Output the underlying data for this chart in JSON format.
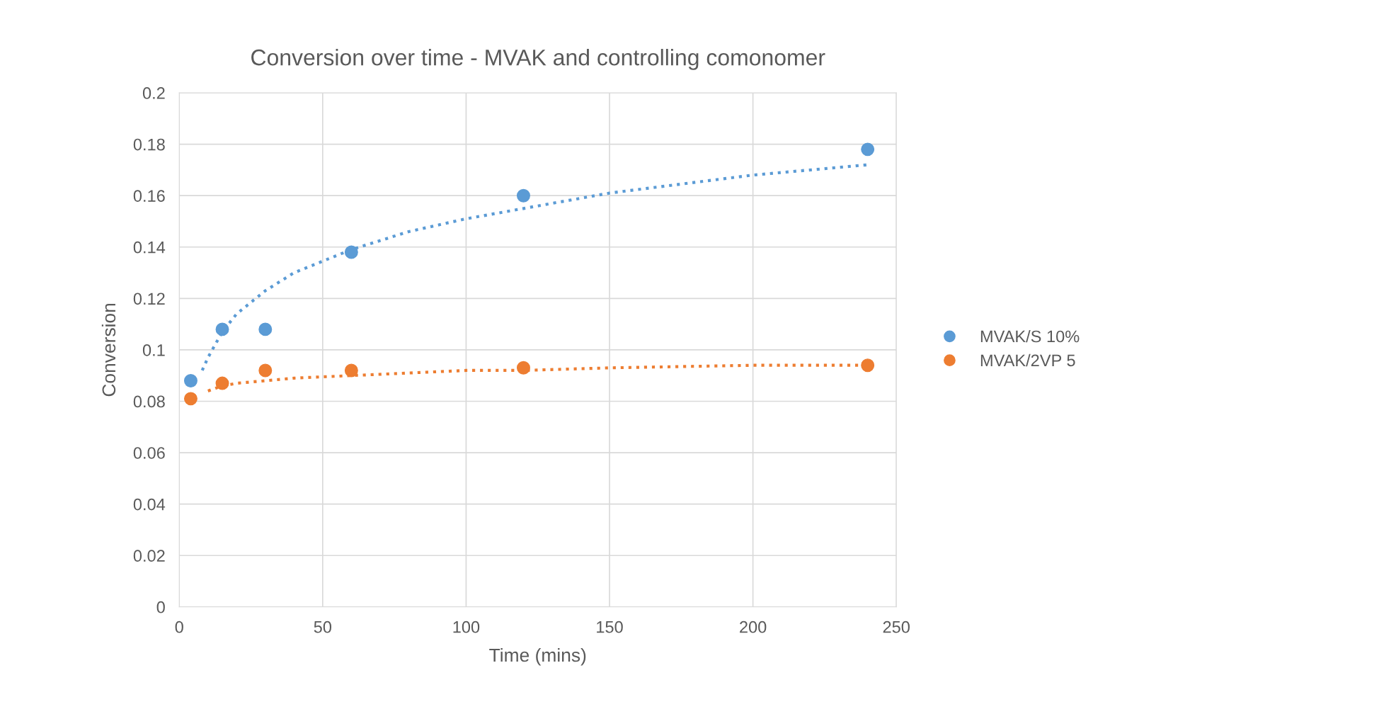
{
  "chart_data": {
    "type": "scatter",
    "title": "Conversion over time - MVAK and controlling comonomer",
    "xlabel": "Time (mins)",
    "ylabel": "Conversion",
    "x": [
      4,
      15,
      30,
      60,
      120,
      240
    ],
    "series": [
      {
        "name": "MVAK/S 10%",
        "color": "#5b9bd5",
        "marker": "circle",
        "values": [
          0.088,
          0.108,
          0.108,
          0.138,
          0.16,
          0.178
        ]
      },
      {
        "name": "MVAK/2VP 5",
        "color": "#ed7d31",
        "marker": "circle",
        "values": [
          0.081,
          0.087,
          0.092,
          0.092,
          0.093,
          0.094
        ]
      },
      {
        "type": "line",
        "color": "#5b9bd5",
        "line_style": "dotted",
        "marker": "none",
        "x": [
          8,
          10,
          15,
          20,
          30,
          40,
          60,
          80,
          100,
          120,
          150,
          200,
          240
        ],
        "values": [
          0.092,
          0.097,
          0.107,
          0.114,
          0.123,
          0.13,
          0.139,
          0.146,
          0.151,
          0.155,
          0.161,
          0.168,
          0.172
        ]
      },
      {
        "type": "line",
        "color": "#ed7d31",
        "line_style": "dotted",
        "marker": "none",
        "x": [
          10,
          15,
          20,
          30,
          40,
          60,
          80,
          100,
          120,
          150,
          200,
          240
        ],
        "values": [
          0.084,
          0.086,
          0.087,
          0.088,
          0.089,
          0.09,
          0.091,
          0.092,
          0.092,
          0.093,
          0.094,
          0.094
        ]
      }
    ],
    "xlim": [
      0,
      250
    ],
    "xticks": [
      0,
      50,
      100,
      150,
      200,
      250
    ],
    "ylim": [
      0,
      0.2
    ],
    "yticks": [
      0,
      0.02,
      0.04,
      0.06,
      0.08,
      0.1,
      0.12,
      0.14,
      0.16,
      0.18,
      0.2
    ],
    "grid": true,
    "legend": "right"
  }
}
